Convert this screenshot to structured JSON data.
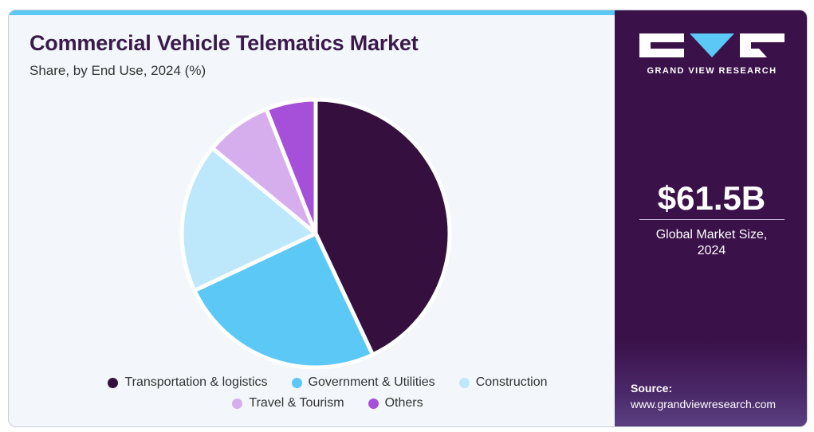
{
  "header": {
    "title": "Commercial Vehicle Telematics Market",
    "subtitle": "Share, by End Use, 2024 (%)"
  },
  "brand": {
    "name": "GRAND VIEW RESEARCH"
  },
  "sidebar": {
    "market_size": "$61.5B",
    "market_label_line1": "Global Market Size,",
    "market_label_line2": "2024",
    "source_label": "Source:",
    "source_url": "www.grandviewresearch.com"
  },
  "chart_data": {
    "type": "pie",
    "title": "Commercial Vehicle Telematics Market",
    "subtitle": "Share, by End Use, 2024 (%)",
    "start_angle_deg": 0,
    "direction": "clockwise",
    "legend_position": "bottom",
    "series": [
      {
        "name": "Transportation & logistics",
        "value": 43,
        "color": "#35103f"
      },
      {
        "name": "Government & Utilities",
        "value": 25,
        "color": "#5bc8f5"
      },
      {
        "name": "Construction",
        "value": 18,
        "color": "#bde8fb"
      },
      {
        "name": "Travel & Tourism",
        "value": 8,
        "color": "#d6aeee"
      },
      {
        "name": "Others",
        "value": 6,
        "color": "#a64fd9"
      }
    ]
  }
}
